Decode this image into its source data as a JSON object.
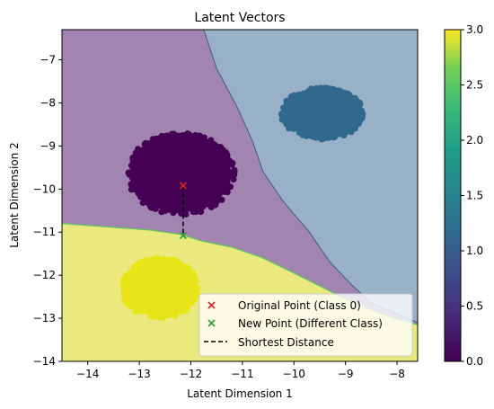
{
  "chart_data": {
    "type": "scatter",
    "title": "Latent Vectors",
    "xlabel": "Latent Dimension 1",
    "ylabel": "Latent Dimension 2",
    "xlim": [
      -14.5,
      -7.6
    ],
    "ylim": [
      -14,
      -6.3
    ],
    "xticks": [
      -14,
      -13,
      -12,
      -11,
      -10,
      -9,
      -8
    ],
    "yticks": [
      -14,
      -13,
      -12,
      -11,
      -10,
      -9,
      -8,
      -7
    ],
    "grid": false,
    "legend_position": "lower-right",
    "decision_regions": [
      {
        "class": 0,
        "color": "#a185b0",
        "boundary": [
          [
            -14.5,
            -10.8
          ],
          [
            -13.6,
            -10.88
          ],
          [
            -12.8,
            -10.95
          ],
          [
            -12.2,
            -11.05
          ],
          [
            -11.8,
            -11.2
          ],
          [
            -11.2,
            -11.35
          ],
          [
            -10.6,
            -11.6
          ],
          [
            -10.0,
            -11.95
          ],
          [
            -9.5,
            -12.25
          ],
          [
            -9.0,
            -12.55
          ],
          [
            -8.6,
            -12.75
          ],
          [
            -8.2,
            -12.95
          ],
          [
            -7.6,
            -13.15
          ]
        ]
      },
      {
        "class": 1,
        "color": "#98b1c7",
        "boundary": [
          [
            -11.75,
            -6.3
          ],
          [
            -11.5,
            -7.2
          ],
          [
            -11.1,
            -8.1
          ],
          [
            -10.8,
            -8.9
          ],
          [
            -10.6,
            -9.6
          ],
          [
            -10.2,
            -10.3
          ],
          [
            -9.7,
            -11.0
          ],
          [
            -9.3,
            -11.7
          ],
          [
            -8.9,
            -12.2
          ],
          [
            -8.5,
            -12.65
          ],
          [
            -8.1,
            -12.85
          ],
          [
            -7.6,
            -13.1
          ]
        ]
      },
      {
        "class": 3,
        "color": "#e9e97e"
      }
    ],
    "clusters": [
      {
        "class": 0,
        "color": "#440154",
        "center": [
          -12.2,
          -9.65
        ],
        "spread": [
          1.05,
          0.95
        ]
      },
      {
        "class": 1,
        "color": "#31688e",
        "center": [
          -9.45,
          -8.25
        ],
        "spread": [
          0.8,
          0.6
        ]
      },
      {
        "class": 3,
        "color": "#e7e419",
        "center": [
          -12.6,
          -12.3
        ],
        "spread": [
          0.75,
          0.7
        ]
      }
    ],
    "original_point": {
      "x": -12.15,
      "y": -9.92,
      "label": "Original Point (Class 0)",
      "color": "#d62728"
    },
    "new_point": {
      "x": -12.15,
      "y": -11.08,
      "label": "New Point (Different Class)",
      "color": "#2ca02c"
    },
    "shortest_distance": {
      "label": "Shortest Distance",
      "color": "#000000"
    },
    "colorbar": {
      "min": 0.0,
      "max": 3.0,
      "ticks": [
        "0.0",
        "0.5",
        "1.0",
        "1.5",
        "2.0",
        "2.5",
        "3.0"
      ],
      "colormap": "viridis"
    }
  }
}
